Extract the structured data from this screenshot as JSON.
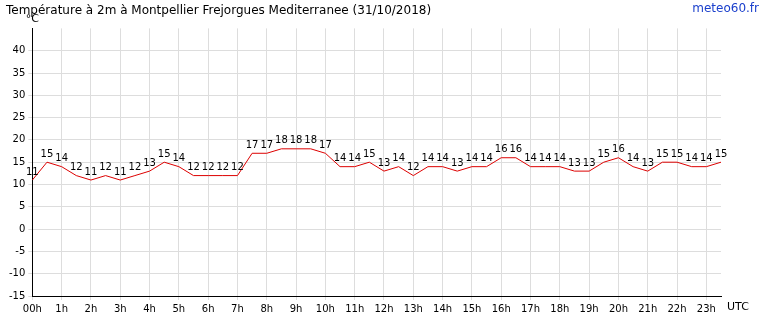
{
  "chart_data": {
    "type": "line",
    "title": "Température à 2m à Montpellier Frejorgues Mediterranee (31/10/2018)",
    "source": "meteo60.fr",
    "xlabel": "UTC",
    "ylabel": "°C",
    "categories": [
      "00h",
      null,
      "1h",
      null,
      "2h",
      null,
      "3h",
      null,
      "4h",
      null,
      "5h",
      null,
      "6h",
      null,
      "7h",
      null,
      "8h",
      null,
      "9h",
      null,
      "10h",
      null,
      "11h",
      null,
      "12h",
      null,
      "13h",
      null,
      "14h",
      null,
      "15h",
      null,
      "16h",
      null,
      "17h",
      null,
      "18h",
      null,
      "19h",
      null,
      "20h",
      null,
      "21h",
      null,
      "22h",
      null,
      "23h",
      null
    ],
    "values": [
      11,
      15,
      14,
      12,
      11,
      12,
      11,
      12,
      13,
      15,
      14,
      12,
      12,
      12,
      12,
      17,
      17,
      18,
      18,
      18,
      17,
      14,
      14,
      15,
      13,
      14,
      12,
      14,
      14,
      13,
      14,
      14,
      16,
      16,
      14,
      14,
      14,
      13,
      13,
      15,
      16,
      14,
      13,
      15,
      15,
      14,
      14,
      15
    ],
    "color": "#dd0000",
    "ylim": [
      -15,
      45
    ],
    "yticks": [
      -15,
      -10,
      -5,
      0,
      5,
      10,
      15,
      20,
      25,
      30,
      35,
      40
    ],
    "grid": true,
    "data_labels": true
  }
}
